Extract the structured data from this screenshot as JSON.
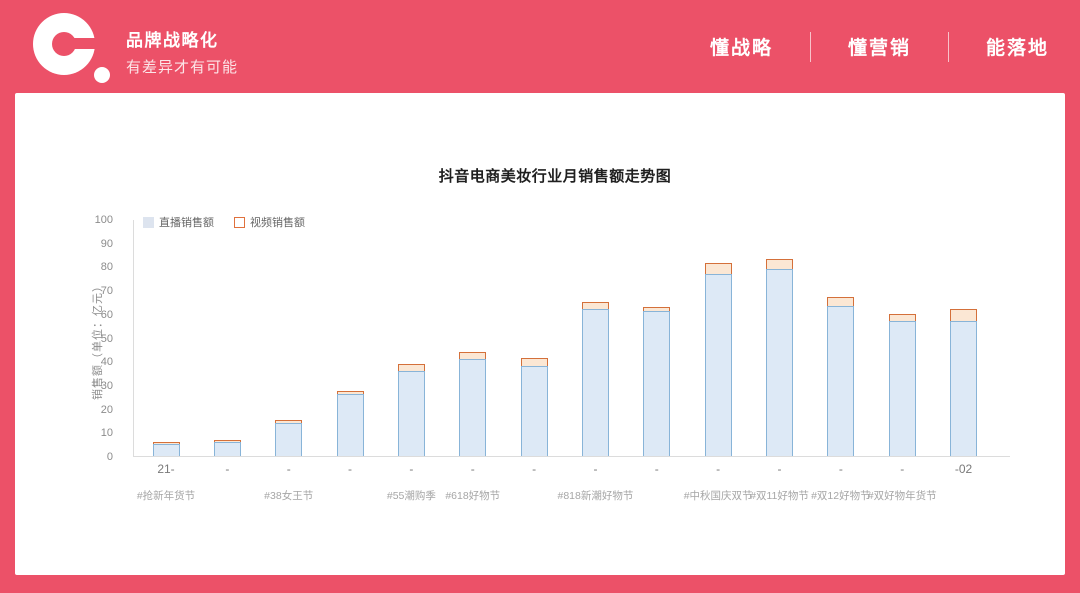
{
  "header": {
    "logo": "e-dot-logo",
    "brand_title": "品牌战略化",
    "brand_subtitle": "有差异才有可能",
    "nav": [
      {
        "label": "懂战略"
      },
      {
        "label": "懂营销"
      },
      {
        "label": "能落地"
      }
    ],
    "background_color": "#ec5168"
  },
  "chart_data": {
    "type": "bar",
    "stacked": true,
    "title": "抖音电商美妆行业月销售额走势图",
    "ylabel": "销售额（单位：亿元）",
    "ylim": [
      0,
      100
    ],
    "ytick_step": 10,
    "grid": false,
    "legend_position": "top-left",
    "categories": [
      "21-",
      "-",
      "-",
      "-",
      "-",
      "-",
      "-",
      "-",
      "-",
      "-",
      "-",
      "-",
      "-",
      "-02"
    ],
    "series": [
      {
        "name": "直播销售额",
        "color": "#dde9f6",
        "border_color": "#88b4d8",
        "values": [
          5.2,
          6.1,
          14,
          26,
          36,
          41,
          38,
          62,
          61,
          77,
          79,
          63.5,
          57,
          57
        ]
      },
      {
        "name": "视频销售额",
        "color": "#fbe7d4",
        "border_color": "#d4703a",
        "values": [
          0.6,
          0.7,
          1,
          1.5,
          3,
          3,
          3.5,
          3,
          2,
          4.5,
          4,
          3.5,
          3,
          5
        ]
      }
    ],
    "annotations": [
      {
        "label": "#抢新年货节",
        "bar_index": 0
      },
      {
        "label": "#38女王节",
        "bar_index": 2
      },
      {
        "label": "#55潮购季",
        "bar_index": 4
      },
      {
        "label": "#618好物节",
        "bar_index": 5
      },
      {
        "label": "#818新潮好物节",
        "bar_index": 7
      },
      {
        "label": "#中秋国庆双节",
        "bar_index": 9
      },
      {
        "label": "#双11好物节",
        "bar_index": 10
      },
      {
        "label": "#双12好物节",
        "bar_index": 11
      },
      {
        "label": "#双好物年货节",
        "bar_index": 12
      }
    ]
  }
}
